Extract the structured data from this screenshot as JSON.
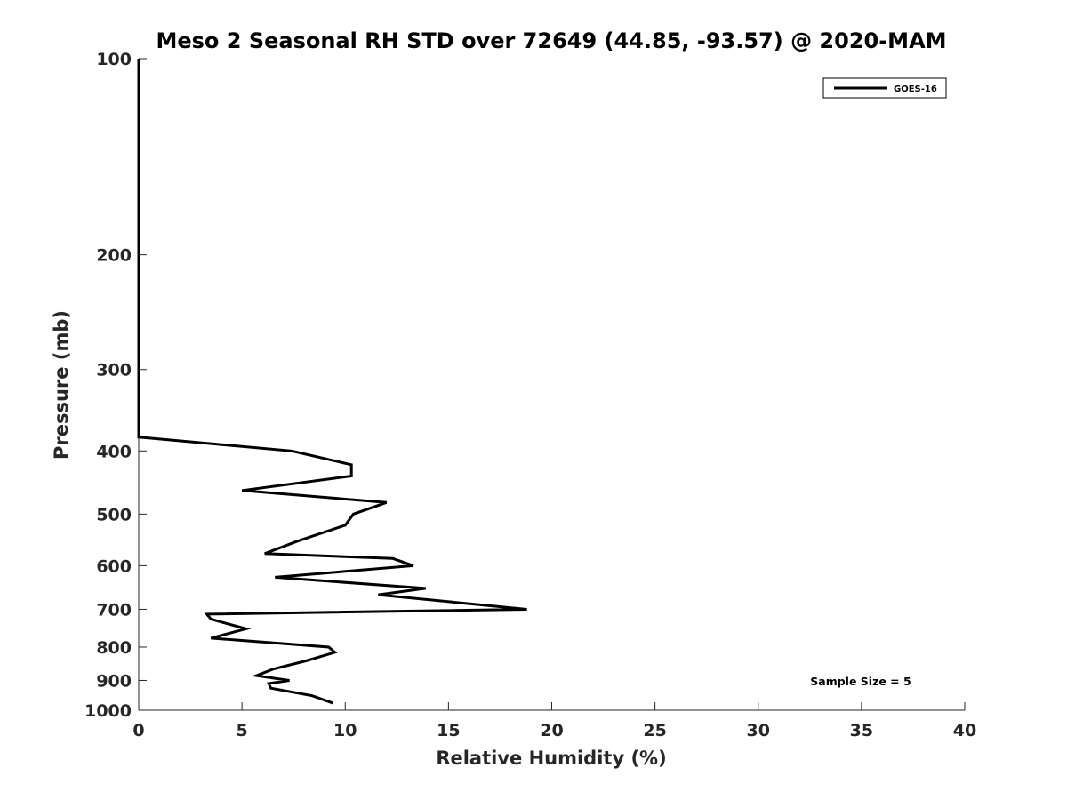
{
  "chart_data": {
    "type": "line",
    "title": "Meso 2 Seasonal RH STD over 72649 (44.85, -93.57) @ 2020-MAM",
    "xlabel": "Relative Humidity (%)",
    "ylabel": "Pressure (mb)",
    "xlim": [
      0,
      40
    ],
    "ylim": [
      1000,
      100
    ],
    "y_scale": "log",
    "x_ticks": [
      "0",
      "5",
      "10",
      "15",
      "20",
      "25",
      "30",
      "35",
      "40"
    ],
    "y_ticks": [
      "100",
      "200",
      "300",
      "400",
      "500",
      "600",
      "700",
      "800",
      "900",
      "1000"
    ],
    "grid": false,
    "legend_position": "top-right",
    "annotation": "Sample Size = 5",
    "series": [
      {
        "name": "GOES-16",
        "color": "#000000",
        "points": [
          {
            "p": 100,
            "rh": 0
          },
          {
            "p": 200,
            "rh": 0
          },
          {
            "p": 300,
            "rh": 0
          },
          {
            "p": 381,
            "rh": 0
          },
          {
            "p": 400,
            "rh": 7.4
          },
          {
            "p": 420,
            "rh": 10.3
          },
          {
            "p": 437,
            "rh": 10.3
          },
          {
            "p": 460,
            "rh": 5.0
          },
          {
            "p": 480,
            "rh": 12.0
          },
          {
            "p": 500,
            "rh": 10.4
          },
          {
            "p": 520,
            "rh": 10.0
          },
          {
            "p": 550,
            "rh": 7.7
          },
          {
            "p": 575,
            "rh": 6.1
          },
          {
            "p": 585,
            "rh": 12.3
          },
          {
            "p": 600,
            "rh": 13.3
          },
          {
            "p": 625,
            "rh": 6.6
          },
          {
            "p": 650,
            "rh": 13.9
          },
          {
            "p": 665,
            "rh": 11.6
          },
          {
            "p": 700,
            "rh": 18.8
          },
          {
            "p": 712,
            "rh": 3.3
          },
          {
            "p": 725,
            "rh": 3.5
          },
          {
            "p": 750,
            "rh": 5.2
          },
          {
            "p": 775,
            "rh": 3.5
          },
          {
            "p": 800,
            "rh": 9.2
          },
          {
            "p": 815,
            "rh": 9.5
          },
          {
            "p": 840,
            "rh": 8.1
          },
          {
            "p": 865,
            "rh": 6.5
          },
          {
            "p": 885,
            "rh": 5.7
          },
          {
            "p": 900,
            "rh": 7.3
          },
          {
            "p": 910,
            "rh": 6.3
          },
          {
            "p": 925,
            "rh": 6.4
          },
          {
            "p": 950,
            "rh": 8.4
          },
          {
            "p": 975,
            "rh": 9.4
          }
        ]
      }
    ]
  }
}
